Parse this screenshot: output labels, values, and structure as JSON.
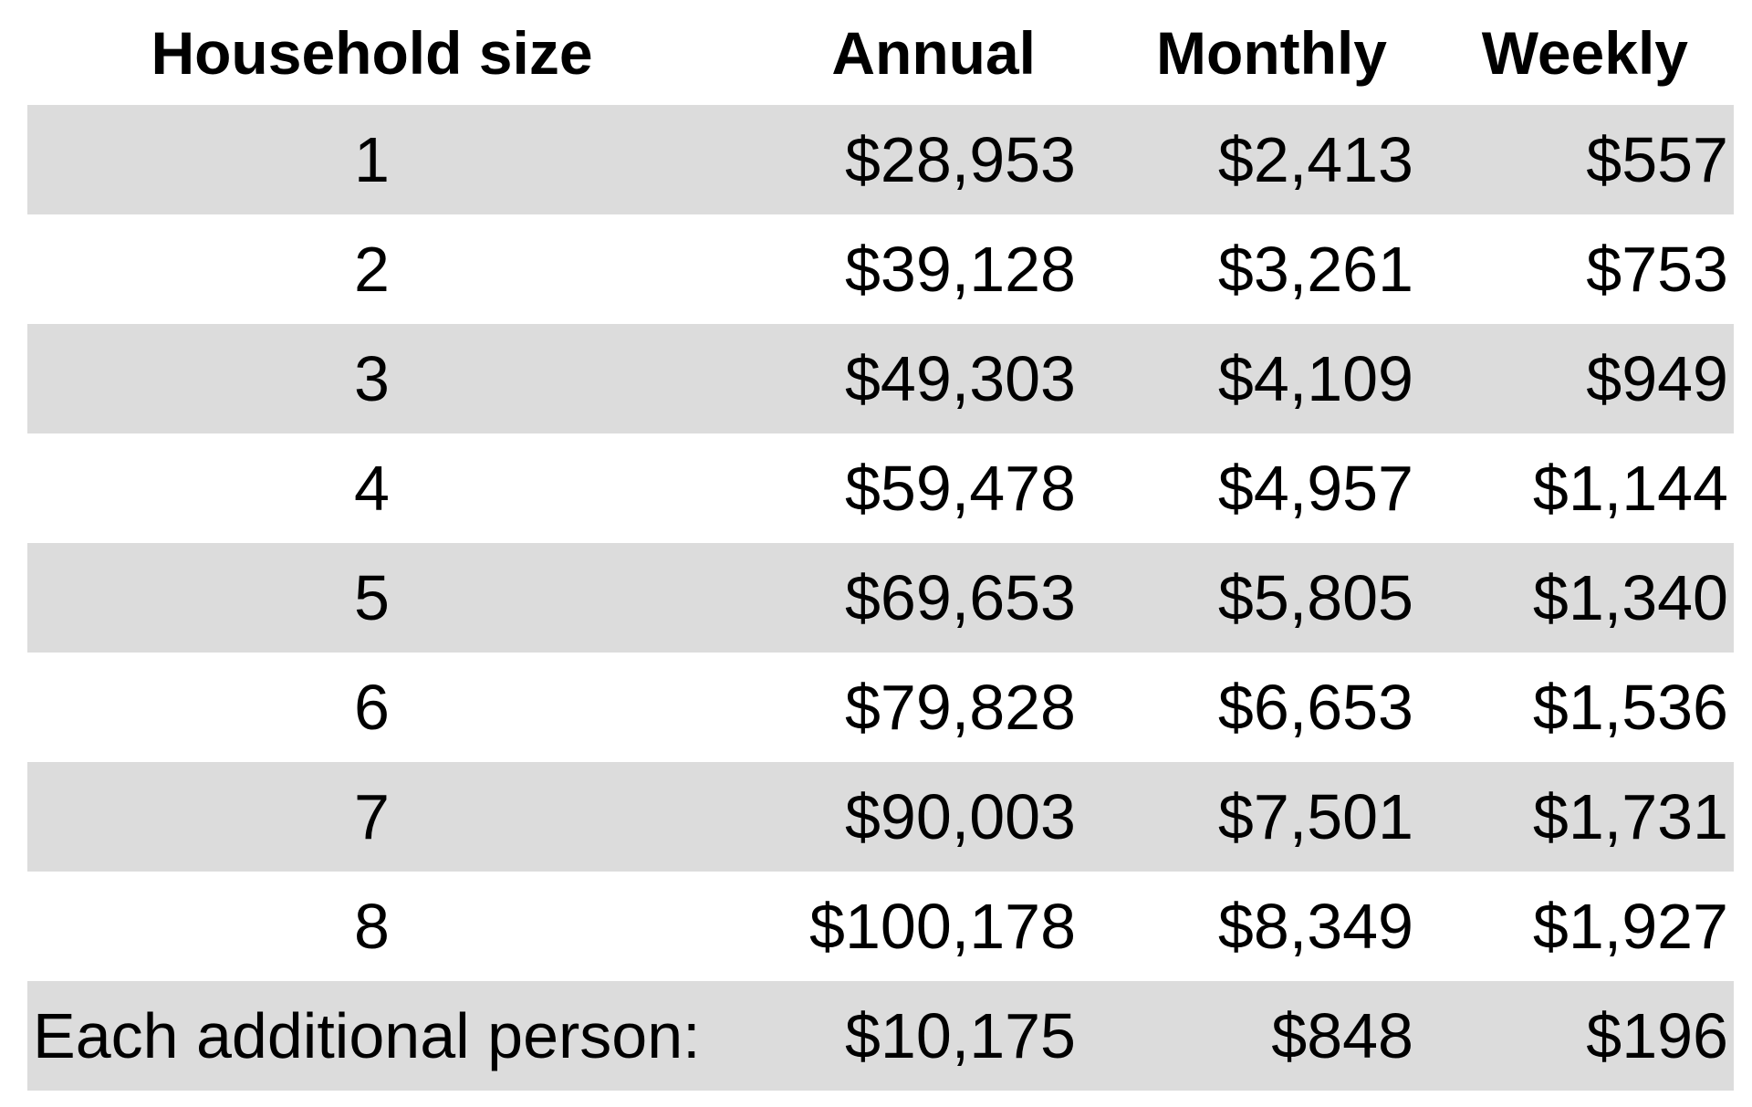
{
  "headers": {
    "size": "Household size",
    "annual": "Annual",
    "monthly": "Monthly",
    "weekly": "Weekly"
  },
  "rows": [
    {
      "size": "1",
      "annual": "$28,953",
      "monthly": "$2,413",
      "weekly": "$557"
    },
    {
      "size": "2",
      "annual": "$39,128",
      "monthly": "$3,261",
      "weekly": "$753"
    },
    {
      "size": "3",
      "annual": "$49,303",
      "monthly": "$4,109",
      "weekly": "$949"
    },
    {
      "size": "4",
      "annual": "$59,478",
      "monthly": "$4,957",
      "weekly": "$1,144"
    },
    {
      "size": "5",
      "annual": "$69,653",
      "monthly": "$5,805",
      "weekly": "$1,340"
    },
    {
      "size": "6",
      "annual": "$79,828",
      "monthly": "$6,653",
      "weekly": "$1,536"
    },
    {
      "size": "7",
      "annual": "$90,003",
      "monthly": "$7,501",
      "weekly": "$1,731"
    },
    {
      "size": "8",
      "annual": "$100,178",
      "monthly": "$8,349",
      "weekly": "$1,927"
    },
    {
      "size": "Each additional person:",
      "annual": "$10,175",
      "monthly": "$848",
      "weekly": "$196"
    }
  ],
  "colors": {
    "stripe": "#dcdcdc",
    "background": "#ffffff",
    "text": "#000000"
  }
}
